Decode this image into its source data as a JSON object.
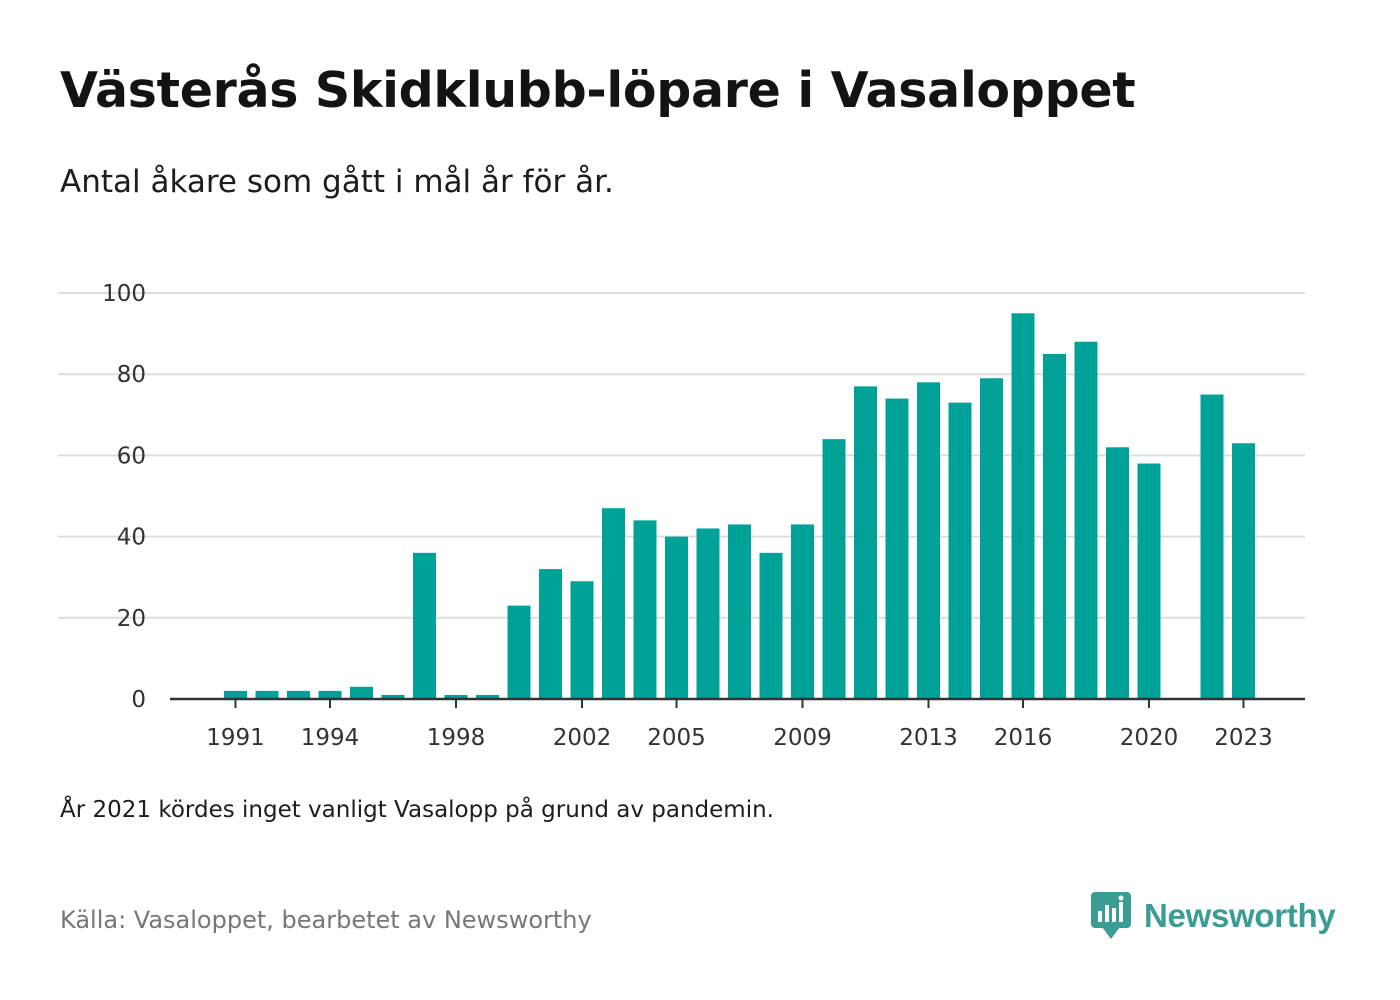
{
  "title": "Västerås Skidklubb-löpare i Vasaloppet",
  "subtitle": "Antal åkare som gått i mål år för år.",
  "note": "År 2021 kördes inget vanligt Vasalopp på grund av pandemin.",
  "source": "Källa: Vasaloppet, bearbetet av Newsworthy",
  "brand": {
    "name": "Newsworthy",
    "color": "#3a9d93",
    "icon": "newsworthy-logo-icon"
  },
  "colors": {
    "bar": "#00a298",
    "grid": "#dddddd",
    "axis": "#333333"
  },
  "chart_data": {
    "type": "bar",
    "title": "",
    "xlabel": "",
    "ylabel": "",
    "categories": [
      1991,
      1992,
      1993,
      1994,
      1995,
      1996,
      1997,
      1998,
      1999,
      2000,
      2001,
      2002,
      2003,
      2004,
      2005,
      2006,
      2007,
      2008,
      2009,
      2010,
      2011,
      2012,
      2013,
      2014,
      2015,
      2016,
      2017,
      2018,
      2019,
      2020,
      2021,
      2022,
      2023
    ],
    "values": [
      2,
      2,
      2,
      2,
      3,
      1,
      36,
      1,
      1,
      23,
      32,
      29,
      47,
      44,
      40,
      42,
      43,
      36,
      43,
      64,
      77,
      74,
      78,
      73,
      79,
      95,
      85,
      88,
      62,
      58,
      0,
      75,
      63
    ],
    "ylim": [
      0,
      100
    ],
    "yticks": [
      0,
      20,
      40,
      60,
      80,
      100
    ],
    "xtick_labels": [
      1991,
      1994,
      1998,
      2002,
      2005,
      2009,
      2013,
      2016,
      2020,
      2023
    ],
    "grid": true,
    "legend": "none"
  }
}
